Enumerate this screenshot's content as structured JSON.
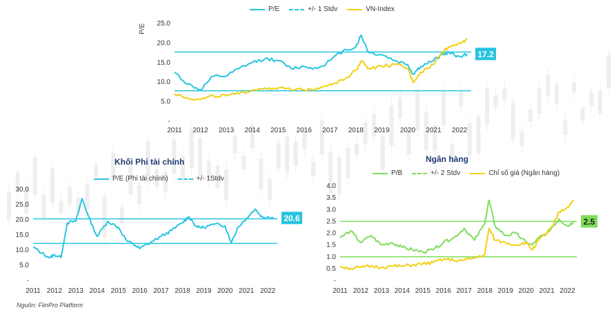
{
  "colors": {
    "pe": "#27c4e0",
    "pb": "#7fdc5a",
    "index": "#f2cf0e",
    "stdv_pe": "#27c4e0",
    "stdv_pb": "#7fdc5a",
    "badge_pe": "#27c4e0",
    "badge_pb": "#7fdc5a",
    "axis_text": "#333333",
    "candle_bg": "#eeeeee"
  },
  "source_note": "Nguồn: FiinPro Platform",
  "chart_data": [
    {
      "type": "line",
      "title": "",
      "ylabel": "P/E",
      "legend": [
        "P/E",
        "+/- 1 Stdv",
        "VN-Index"
      ],
      "legend_position": "top-center",
      "ylim": [
        0,
        25
      ],
      "yticks": [
        "-",
        "5.0",
        "10.0",
        "15.0",
        "20.0",
        "25.0"
      ],
      "xticks": [
        "2011",
        "2012",
        "2013",
        "2014",
        "2015",
        "2016",
        "2017",
        "2018",
        "2019",
        "2020",
        "2021",
        "2022"
      ],
      "x": [
        2011.0,
        2011.5,
        2012.0,
        2012.5,
        2013.0,
        2013.5,
        2014.0,
        2014.5,
        2015.0,
        2015.5,
        2016.0,
        2016.5,
        2017.0,
        2017.5,
        2018.0,
        2018.2,
        2018.5,
        2019.0,
        2019.5,
        2020.0,
        2020.2,
        2020.5,
        2021.0,
        2021.3,
        2021.6,
        2022.0,
        2022.3
      ],
      "series": [
        {
          "name": "P/E",
          "values": [
            12.5,
            9.5,
            8.0,
            11.5,
            11.5,
            13.5,
            15.0,
            16.0,
            15.5,
            13.5,
            14.0,
            13.5,
            15.5,
            18.0,
            19.0,
            22.0,
            17.5,
            17.0,
            15.5,
            14.5,
            12.0,
            14.0,
            15.5,
            17.0,
            17.5,
            16.5,
            17.2
          ]
        },
        {
          "name": "VN-Index",
          "values": [
            7.0,
            6.0,
            5.5,
            6.5,
            6.5,
            7.0,
            8.0,
            8.5,
            8.5,
            8.0,
            8.0,
            8.5,
            9.5,
            10.5,
            13.0,
            15.5,
            13.5,
            14.0,
            14.5,
            13.5,
            10.0,
            12.5,
            14.5,
            17.5,
            19.0,
            20.0,
            21.0
          ]
        }
      ],
      "stdv_lines": [
        17.7,
        7.8
      ],
      "badge_label": "17.2"
    },
    {
      "type": "line",
      "title": "Khối Phi tài chính",
      "legend": [
        "P/E (Phi tài chính)",
        "+/- 1Stdv"
      ],
      "legend_position": "top-center",
      "ylim": [
        0,
        30
      ],
      "yticks": [
        "-",
        "5.0",
        "10.0",
        "15.0",
        "20.0",
        "25.0",
        "30.0"
      ],
      "xticks": [
        "2011",
        "2012",
        "2013",
        "2014",
        "2015",
        "2016",
        "2017",
        "2018",
        "2019",
        "2020",
        "2021",
        "2022"
      ],
      "x": [
        2011.0,
        2011.4,
        2011.8,
        2012.0,
        2012.3,
        2012.6,
        2013.0,
        2013.3,
        2013.6,
        2014.0,
        2014.5,
        2015.0,
        2015.4,
        2015.8,
        2016.0,
        2016.5,
        2017.0,
        2017.5,
        2018.0,
        2018.3,
        2018.7,
        2019.0,
        2019.5,
        2020.0,
        2020.3,
        2020.6,
        2021.0,
        2021.4,
        2021.8,
        2022.0,
        2022.3
      ],
      "series": [
        {
          "name": "P/E (Phi tài chính)",
          "values": [
            11.0,
            9.0,
            7.5,
            8.5,
            7.5,
            19.0,
            19.5,
            27.0,
            21.0,
            14.5,
            19.5,
            17.5,
            13.0,
            11.5,
            10.5,
            12.5,
            14.5,
            16.5,
            19.0,
            21.0,
            17.5,
            17.5,
            18.5,
            18.0,
            12.5,
            17.5,
            20.5,
            23.5,
            20.5,
            21.0,
            20.6
          ]
        }
      ],
      "stdv_lines": [
        20.3,
        12.2
      ],
      "badge_label": "20.6"
    },
    {
      "type": "line",
      "title": "Ngân hàng",
      "legend": [
        "P/B",
        "+/- 2 Stdv",
        "Chỉ số giá (Ngân hàng)"
      ],
      "legend_position": "top-center",
      "ylim": [
        0,
        4
      ],
      "yticks": [
        "-",
        "0.5",
        "1.0",
        "1.5",
        "2.0",
        "2.5",
        "3.0",
        "3.5",
        "4.0"
      ],
      "xticks": [
        "2011",
        "2012",
        "2013",
        "2014",
        "2015",
        "2016",
        "2017",
        "2018",
        "2019",
        "2020",
        "2021",
        "2022"
      ],
      "x": [
        2011.0,
        2011.5,
        2012.0,
        2012.5,
        2013.0,
        2013.5,
        2014.0,
        2014.5,
        2015.0,
        2015.5,
        2016.0,
        2016.5,
        2017.0,
        2017.5,
        2018.0,
        2018.2,
        2018.5,
        2019.0,
        2019.5,
        2020.0,
        2020.3,
        2020.6,
        2021.0,
        2021.3,
        2021.6,
        2022.0,
        2022.3
      ],
      "series": [
        {
          "name": "P/B",
          "values": [
            1.8,
            2.1,
            1.6,
            1.9,
            1.5,
            1.6,
            1.4,
            1.3,
            1.2,
            1.3,
            1.6,
            1.8,
            2.2,
            1.7,
            2.4,
            3.4,
            2.3,
            1.9,
            2.0,
            1.6,
            1.5,
            1.8,
            2.0,
            2.3,
            2.6,
            2.3,
            2.5
          ]
        },
        {
          "name": "Chỉ số giá (Ngân hàng)",
          "values": [
            0.6,
            0.5,
            0.55,
            0.6,
            0.55,
            0.6,
            0.6,
            0.65,
            0.7,
            0.75,
            0.9,
            0.85,
            0.85,
            0.95,
            1.1,
            2.2,
            1.7,
            1.6,
            1.5,
            1.6,
            1.3,
            1.7,
            2.0,
            2.3,
            2.9,
            3.1,
            3.4
          ]
        }
      ],
      "stdv_lines": [
        2.5,
        1.0
      ],
      "badge_label": "2.5"
    }
  ]
}
